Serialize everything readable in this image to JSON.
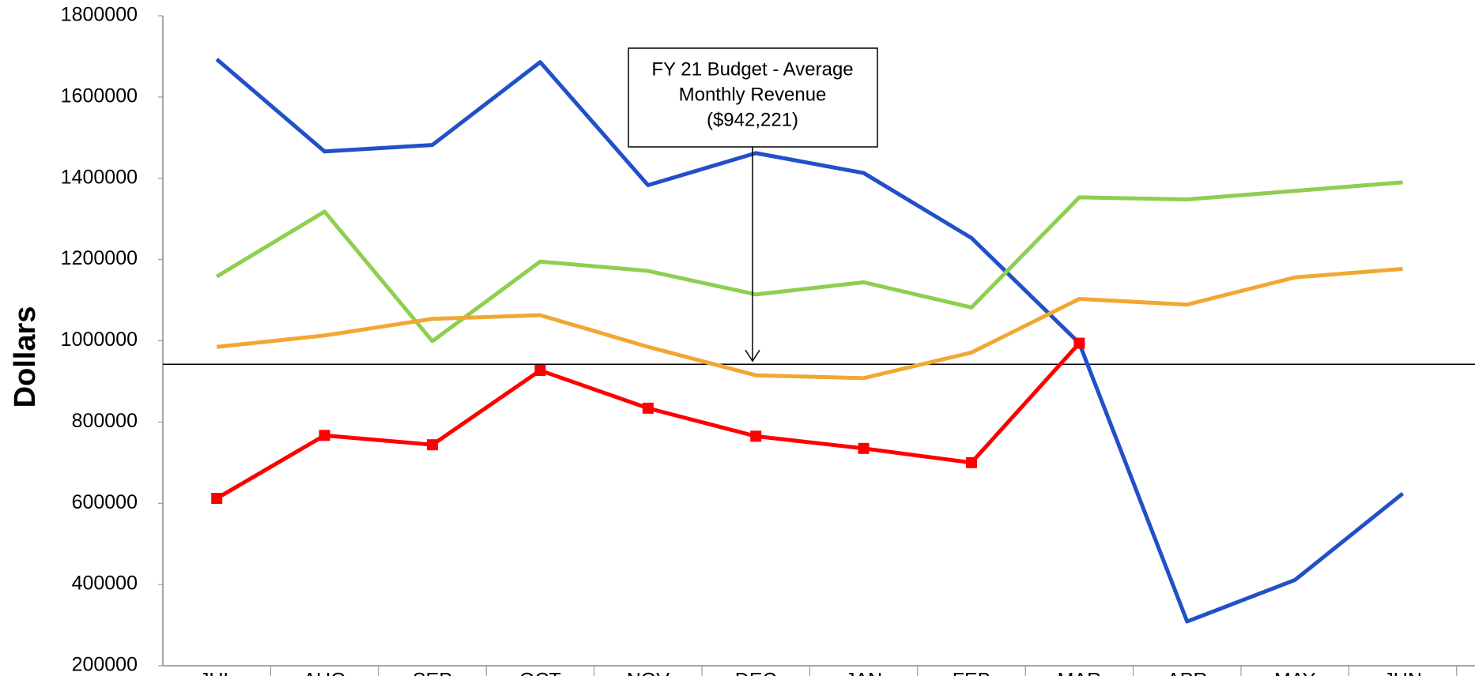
{
  "chart_data": {
    "type": "line",
    "y_label": "Dollars",
    "annotation": [
      "FY 21 Budget - Average",
      "Monthly Revenue",
      "($942,221)"
    ],
    "reference_line": 942221,
    "categories": [
      "JUL",
      "AUG",
      "SEP",
      "OCT",
      "NOV",
      "DEC",
      "JAN",
      "FEB",
      "MAR",
      "APR",
      "MAY",
      "JUN"
    ],
    "series": [
      {
        "color": "#2150c8",
        "values": [
          1693000,
          1466000,
          1482000,
          1686000,
          1383000,
          1462000,
          1413000,
          1253000,
          994000,
          309000,
          411000,
          624000
        ]
      },
      {
        "color": "#8dcf4f",
        "values": [
          1158000,
          1318000,
          999000,
          1195000,
          1172000,
          1114000,
          1144000,
          1082000,
          1353000,
          1348000,
          1369000,
          1390000
        ]
      },
      {
        "color": "#f0a832",
        "values": [
          985000,
          1013000,
          1054000,
          1063000,
          985000,
          915000,
          908000,
          971000,
          1103000,
          1089000,
          1156000,
          1177000
        ]
      },
      {
        "color": "#ff0000",
        "markers": true,
        "values": [
          612000,
          767000,
          744000,
          927000,
          834000,
          765000,
          735000,
          700000,
          994000,
          null,
          null,
          null
        ]
      }
    ],
    "ylim": [
      200000,
      1800000
    ],
    "yticks": [
      200000,
      400000,
      600000,
      800000,
      1000000,
      1200000,
      1400000,
      1600000,
      1800000
    ]
  }
}
